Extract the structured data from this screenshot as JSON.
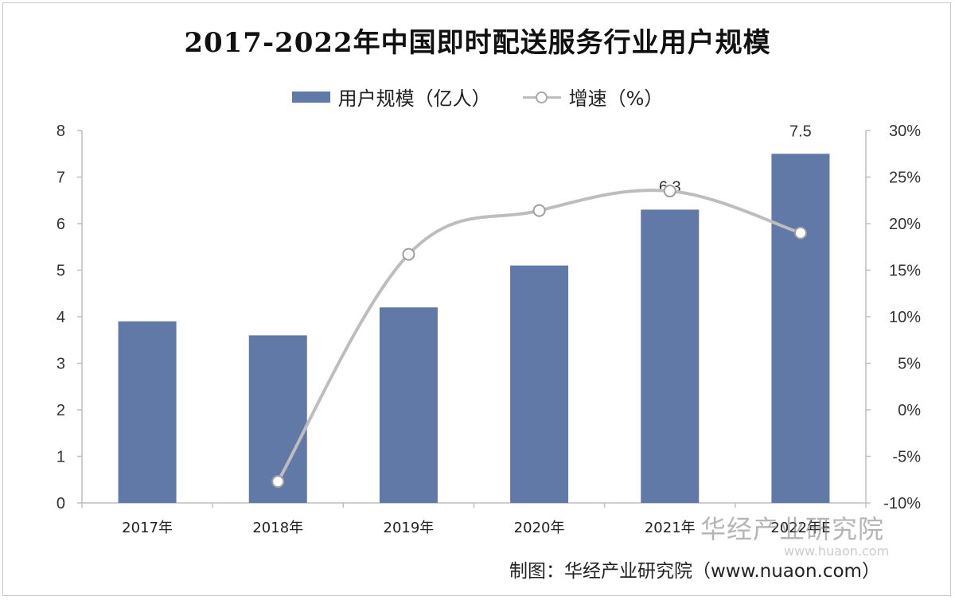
{
  "chart_data": {
    "type": "bar+line",
    "title": "2017-2022年中国即时配送服务行业用户规模",
    "categories": [
      "2017年",
      "2018年",
      "2019年",
      "2020年",
      "2021年",
      "2022年E"
    ],
    "series": [
      {
        "name": "用户规模（亿人）",
        "type": "bar",
        "axis": "left",
        "values": [
          3.9,
          3.6,
          4.2,
          5.1,
          6.3,
          7.5
        ]
      },
      {
        "name": "增速（%）",
        "type": "line",
        "axis": "right",
        "values": [
          null,
          -7.7,
          16.7,
          21.4,
          23.5,
          19.0
        ]
      }
    ],
    "data_labels": [
      {
        "category": "2021年",
        "text": "6.3"
      },
      {
        "category": "2022年E",
        "text": "7.5"
      }
    ],
    "y_left": {
      "lim": [
        0,
        8
      ],
      "ticks": [
        "0",
        "1",
        "2",
        "3",
        "4",
        "5",
        "6",
        "7",
        "8"
      ]
    },
    "y_right": {
      "lim": [
        -10,
        30
      ],
      "ticks": [
        "-10%",
        "-5%",
        "0%",
        "5%",
        "10%",
        "15%",
        "20%",
        "25%",
        "30%"
      ]
    },
    "grid": false,
    "legend": "top-center",
    "colors": {
      "bar": "#6079a6",
      "line": "#bdbdbd",
      "marker_edge": "#9e9e9e"
    }
  },
  "watermark": {
    "text": "华经产业研究院",
    "url": "www.huaon.com"
  },
  "source": "制图：华经产业研究院（www.nuaon.com）"
}
